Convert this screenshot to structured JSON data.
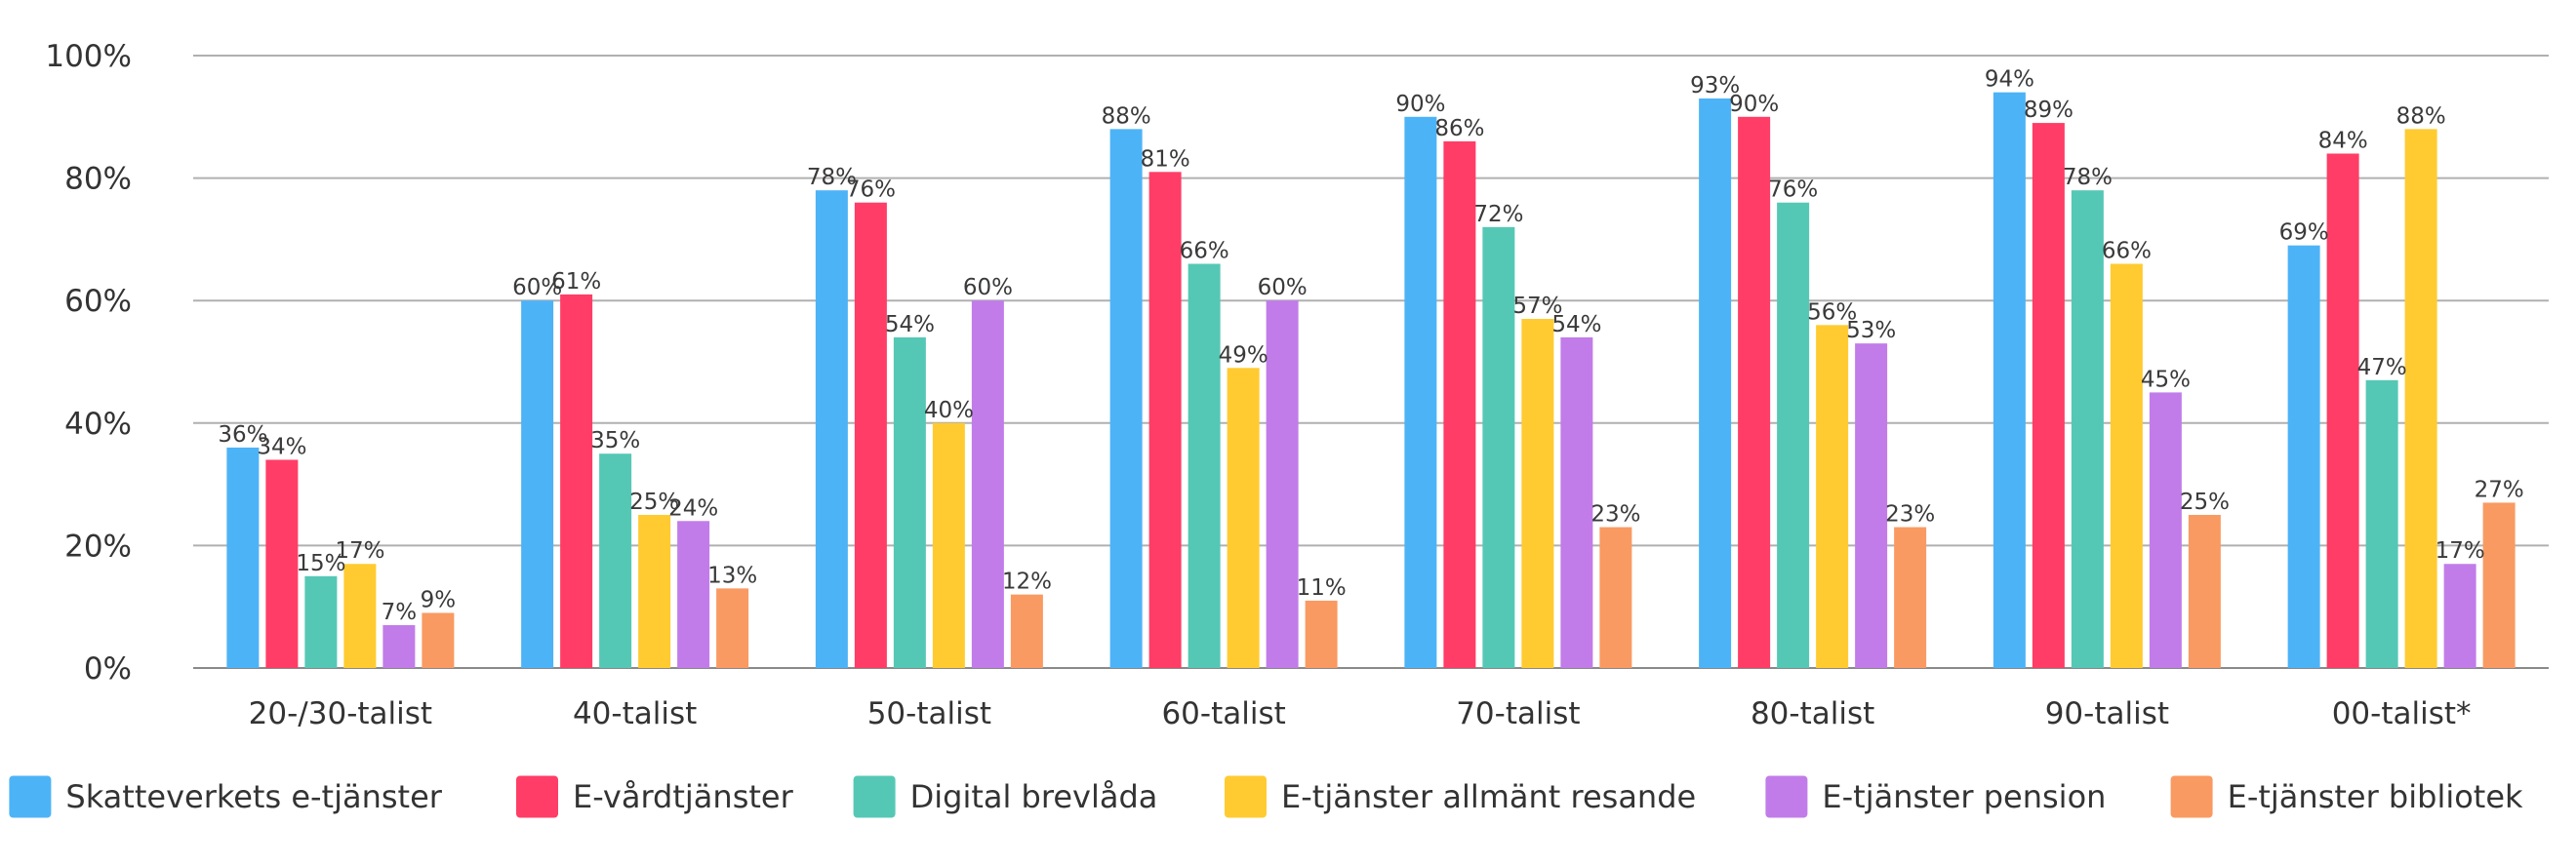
{
  "chart_data": {
    "type": "bar",
    "categories": [
      "20-/30-talist",
      "40-talist",
      "50-talist",
      "60-talist",
      "70-talist",
      "80-talist",
      "90-talist",
      "00-talist*"
    ],
    "series": [
      {
        "name": "Skatteverkets e-tjänster",
        "color": "#4db3f7",
        "values": [
          36,
          60,
          78,
          88,
          90,
          93,
          94,
          69
        ]
      },
      {
        "name": "E-vårdtjänster",
        "color": "#ff3d66",
        "values": [
          34,
          61,
          76,
          81,
          86,
          90,
          89,
          84
        ]
      },
      {
        "name": "Digital brevlåda",
        "color": "#55c8b5",
        "values": [
          15,
          35,
          54,
          66,
          72,
          76,
          78,
          47
        ]
      },
      {
        "name": "E-tjänster allmänt resande",
        "color": "#ffcb30",
        "values": [
          17,
          25,
          40,
          49,
          57,
          56,
          66,
          88
        ]
      },
      {
        "name": "E-tjänster pension",
        "color": "#c17ce9",
        "values": [
          7,
          24,
          60,
          60,
          54,
          53,
          45,
          17
        ]
      },
      {
        "name": "E-tjänster bibliotek",
        "color": "#f99a62",
        "values": [
          9,
          13,
          12,
          11,
          23,
          23,
          25,
          27
        ]
      }
    ],
    "ylim": [
      0,
      100
    ],
    "yticks": [
      "0%",
      "20%",
      "40%",
      "60%",
      "80%",
      "100%"
    ],
    "value_suffix": "%",
    "grid": true,
    "legend_position": "bottom",
    "title": "",
    "xlabel": "",
    "ylabel": ""
  }
}
